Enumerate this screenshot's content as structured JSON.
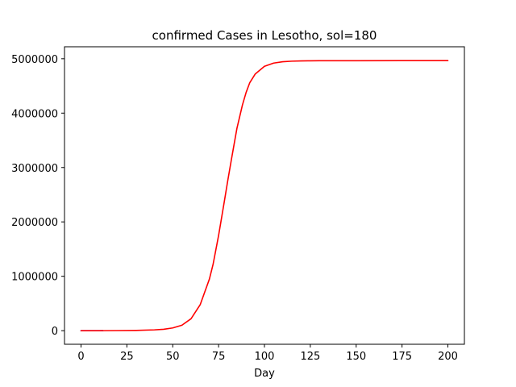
{
  "chart_data": {
    "type": "line",
    "title": "confirmed Cases in Lesotho, sol=180",
    "xlabel": "Day",
    "ylabel": "",
    "xlim": [
      -9,
      209
    ],
    "ylim": [
      -250000,
      5220000
    ],
    "xticks": [
      0,
      25,
      50,
      75,
      100,
      125,
      150,
      175,
      200
    ],
    "yticks": [
      0,
      1000000,
      2000000,
      3000000,
      4000000,
      5000000
    ],
    "xtick_labels": [
      "0",
      "25",
      "50",
      "75",
      "100",
      "125",
      "150",
      "175",
      "200"
    ],
    "ytick_labels": [
      "0",
      "1000000",
      "2000000",
      "3000000",
      "4000000",
      "5000000"
    ],
    "grid": false,
    "legend": "none",
    "series": [
      {
        "color": "#0000ff",
        "x": [
          0,
          2,
          4,
          6,
          8,
          10,
          12
        ],
        "y": [
          0,
          0,
          0,
          0,
          0,
          0,
          0
        ]
      },
      {
        "color": "#ff0000",
        "x": [
          0,
          10,
          20,
          30,
          40,
          45,
          50,
          55,
          60,
          65,
          70,
          72,
          75,
          78,
          80,
          82,
          85,
          88,
          90,
          92,
          95,
          100,
          105,
          110,
          115,
          120,
          125,
          130,
          140,
          150,
          175,
          200
        ],
        "y": [
          0,
          0,
          2000,
          5000,
          15000,
          25000,
          50000,
          100000,
          220000,
          480000,
          950000,
          1220000,
          1750000,
          2350000,
          2760000,
          3150000,
          3720000,
          4150000,
          4380000,
          4560000,
          4720000,
          4860000,
          4920000,
          4945000,
          4955000,
          4960000,
          4962000,
          4963000,
          4964000,
          4964000,
          4965000,
          4965000
        ]
      }
    ]
  }
}
